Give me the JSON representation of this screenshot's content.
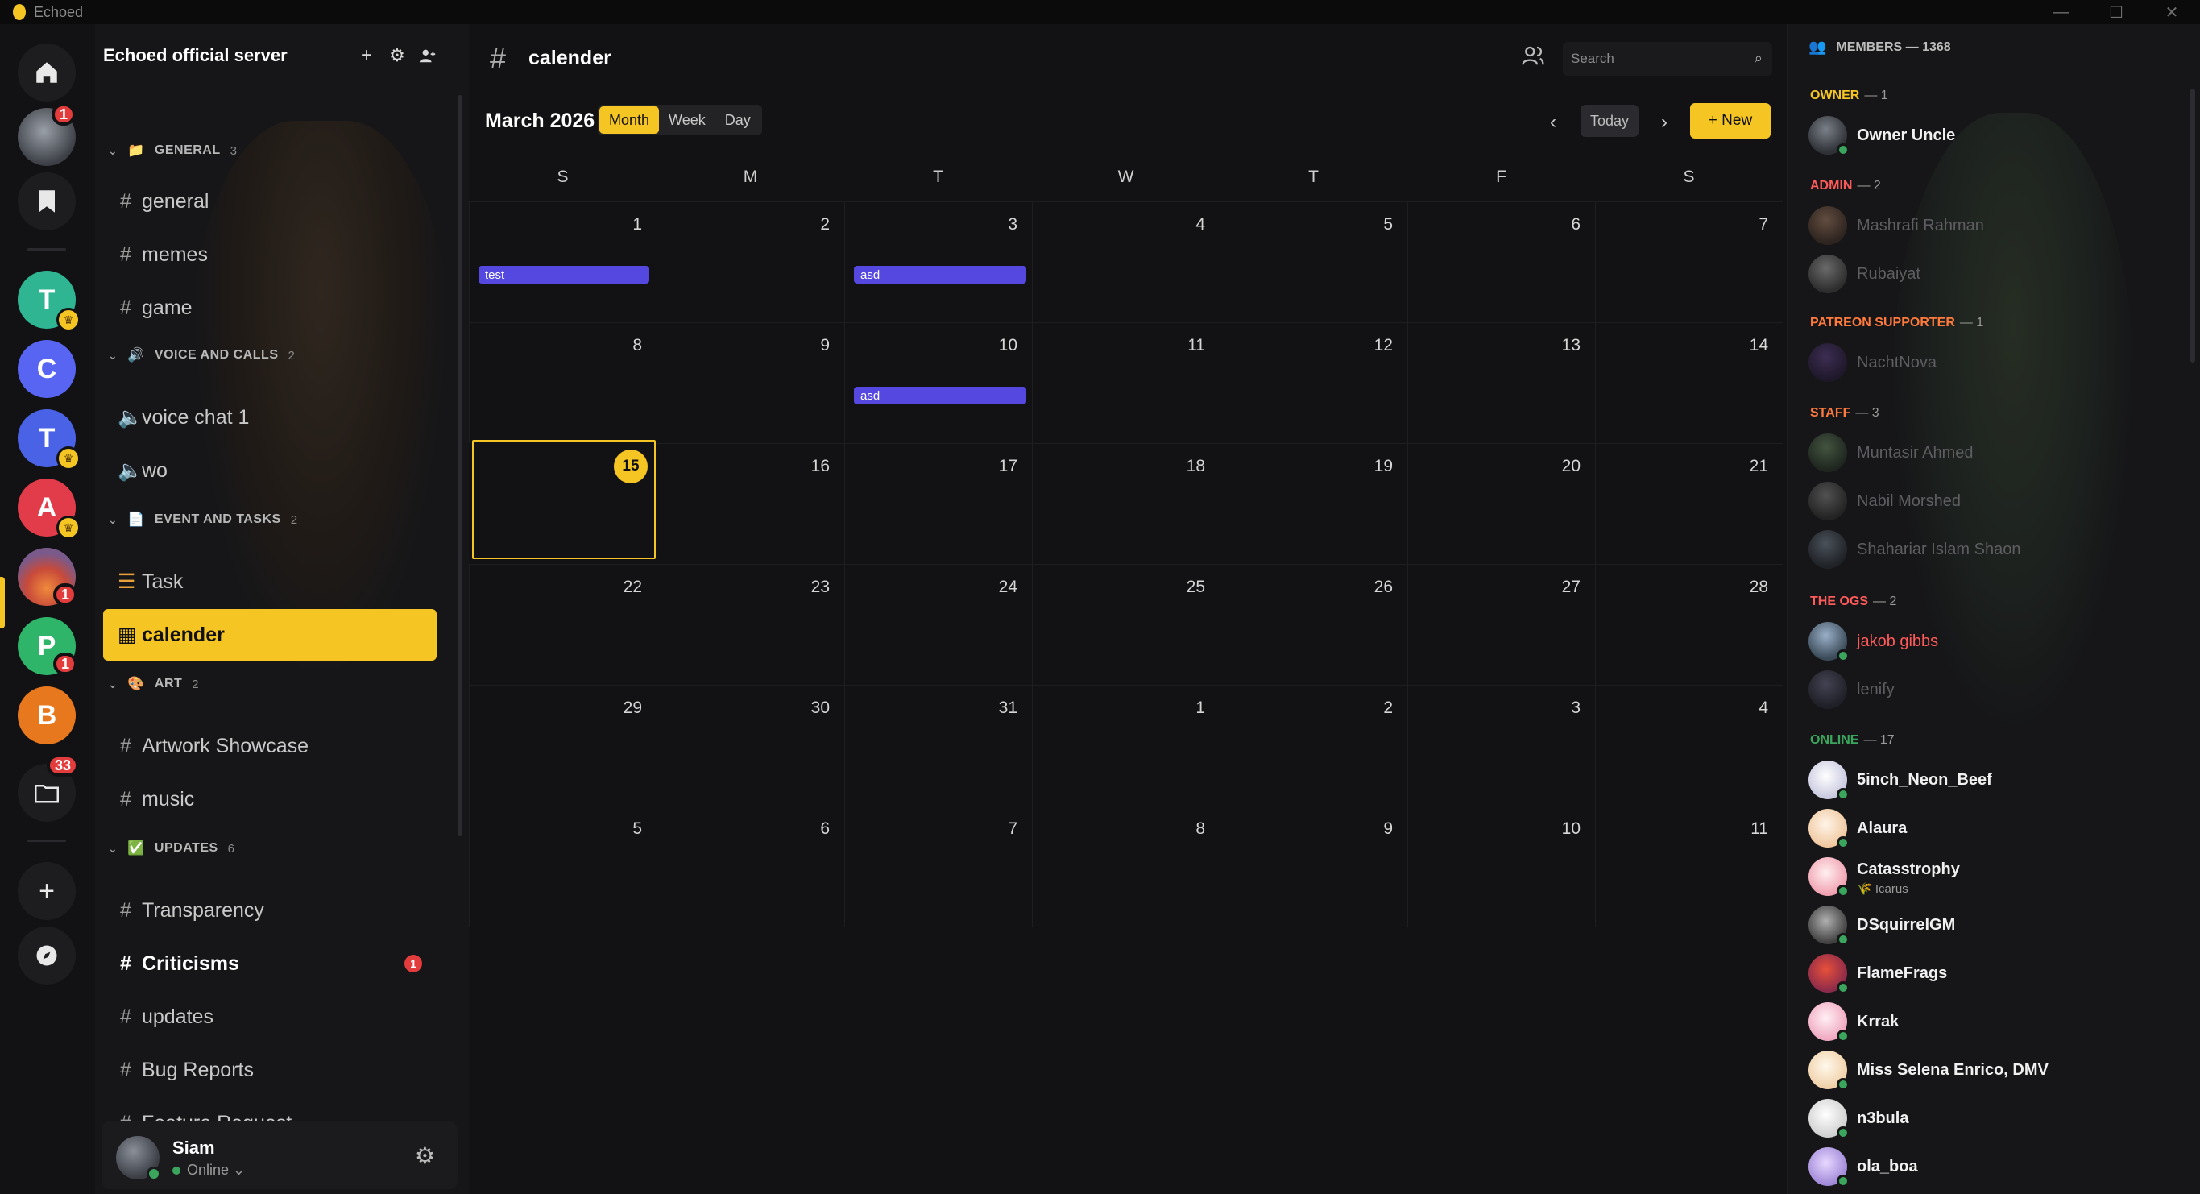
{
  "titlebar": {
    "app_name": "Echoed",
    "minimize": "—",
    "maximize": "☐",
    "close": "✕"
  },
  "rail": {
    "home_icon": "home-icon",
    "bookmark_icon": "bookmark-icon",
    "server_badge_1": "1",
    "servers": [
      {
        "letter": "T",
        "color": "#2fb592"
      },
      {
        "letter": "C",
        "color": "#5865f2"
      },
      {
        "letter": "T",
        "color": "#4a63e6"
      },
      {
        "letter": "A",
        "color": "#e23c4a"
      },
      {
        "letter": "P",
        "color": "#2fb56a"
      },
      {
        "letter": "B",
        "color": "#e8781e"
      }
    ],
    "badge_active": "1",
    "badge_p": "1",
    "folder_badge": "33",
    "add_label": "+",
    "explore_icon": "compass-icon"
  },
  "sidebar": {
    "server_name": "Echoed official server",
    "categories": [
      {
        "name": "GENERAL",
        "count": "3",
        "emoji": "📁"
      },
      {
        "name": "VOICE AND CALLS",
        "count": "2",
        "emoji": "🔊"
      },
      {
        "name": "EVENT AND TASKS",
        "count": "2",
        "emoji": "📄"
      },
      {
        "name": "ART",
        "count": "2",
        "emoji": "🎨"
      },
      {
        "name": "UPDATES",
        "count": "6",
        "emoji": "✅"
      }
    ],
    "channels": {
      "general": "general",
      "memes": "memes",
      "game": "game",
      "voice1": "voice chat 1",
      "voice2": "wo",
      "task": "Task",
      "calendar": "calender",
      "artwork": "Artwork Showcase",
      "music": "music",
      "transparency": "Transparency",
      "criticisms": "Criticisms",
      "criticisms_badge": "1",
      "updates": "updates",
      "bug": "Bug Reports",
      "feature": "Feature Request"
    },
    "user": {
      "name": "Siam",
      "status": "Online ⌄"
    }
  },
  "main": {
    "channel_title": "calender",
    "search_placeholder": "Search",
    "month_label": "March 2026",
    "views": [
      "Month",
      "Week",
      "Day"
    ],
    "today_label": "Today",
    "new_label": "+ New",
    "weekdays": [
      "S",
      "M",
      "T",
      "W",
      "T",
      "F",
      "S"
    ],
    "weeks": [
      [
        "1",
        "2",
        "3",
        "4",
        "5",
        "6",
        "7"
      ],
      [
        "8",
        "9",
        "10",
        "11",
        "12",
        "13",
        "14"
      ],
      [
        "15",
        "16",
        "17",
        "18",
        "19",
        "20",
        "21"
      ],
      [
        "22",
        "23",
        "24",
        "25",
        "26",
        "27",
        "28"
      ],
      [
        "29",
        "30",
        "31",
        "1",
        "2",
        "3",
        "4"
      ],
      [
        "5",
        "6",
        "7",
        "8",
        "9",
        "10",
        "11"
      ]
    ],
    "events": {
      "e1": "test",
      "e2": "asd",
      "e3": "asd"
    }
  },
  "members": {
    "header": "MEMBERS — 1368",
    "roles": {
      "owner": {
        "name": "OWNER",
        "count": "— 1",
        "color": "#f5c524"
      },
      "admin": {
        "name": "ADMIN",
        "count": "— 2",
        "color": "#ff5a5a"
      },
      "patreon": {
        "name": "PATREON SUPPORTER",
        "count": "— 1",
        "color": "#ff7a3d"
      },
      "staff": {
        "name": "STAFF",
        "count": "— 3",
        "color": "#ff7a3d"
      },
      "ogs": {
        "name": "THE OGS",
        "count": "— 2",
        "color": "#ff5a5a"
      },
      "online": {
        "name": "ONLINE",
        "count": "— 17",
        "color": "#3ba55d"
      }
    },
    "list": {
      "owner_uncle": "Owner Uncle",
      "mashrafi": "Mashrafi Rahman",
      "rubaiyat": "Rubaiyat",
      "nachtnova": "NachtNova",
      "muntasir": "Muntasir Ahmed",
      "nabil": "Nabil Morshed",
      "shaharier": "Shahariar Islam Shaon",
      "jakob": "jakob gibbs",
      "lenify": "lenify",
      "sinch": "5inch_Neon_Beef",
      "alaura": "Alaura",
      "catass": "Catasstrophy",
      "catass_sub": "🌾 Icarus",
      "dsq": "DSquirrelGM",
      "flame": "FlameFrags",
      "krrak": "Krrak",
      "selena": "Miss Selena Enrico, DMV",
      "n3bula": "n3bula",
      "ola": "ola_boa"
    }
  }
}
